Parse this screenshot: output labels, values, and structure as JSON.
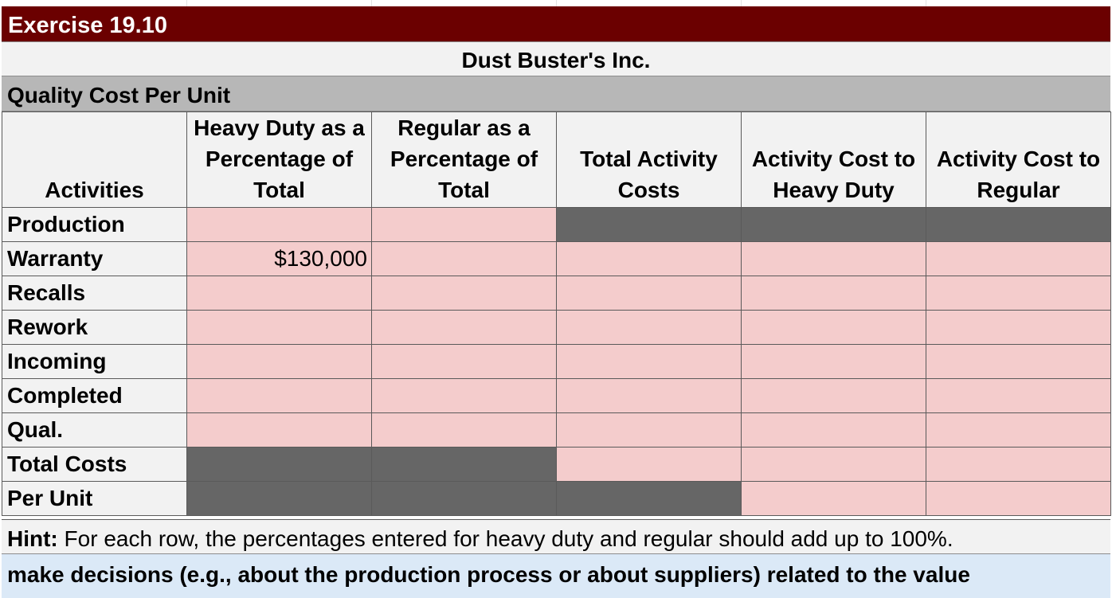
{
  "exercise_title": "Exercise 19.10",
  "company_name": "Dust Buster's Inc.",
  "section_title": "Quality Cost Per Unit",
  "headers": {
    "activities": "Activities",
    "heavy_pct": "Heavy Duty as a Percentage of Total",
    "regular_pct": "Regular as a Percentage of Total",
    "total_activity_costs": "Total Activity Costs",
    "cost_heavy": "Activity Cost to Heavy Duty",
    "cost_regular": "Activity Cost to Regular"
  },
  "rows": [
    {
      "label": "Production",
      "heavy_pct": "",
      "regular_pct": "",
      "total": "",
      "cost_heavy": "",
      "cost_regular": ""
    },
    {
      "label": "Warranty",
      "heavy_pct": "$130,000",
      "regular_pct": "",
      "total": "",
      "cost_heavy": "",
      "cost_regular": ""
    },
    {
      "label": "Recalls",
      "heavy_pct": "",
      "regular_pct": "",
      "total": "",
      "cost_heavy": "",
      "cost_regular": ""
    },
    {
      "label": "Rework",
      "heavy_pct": "",
      "regular_pct": "",
      "total": "",
      "cost_heavy": "",
      "cost_regular": ""
    },
    {
      "label": "Incoming",
      "heavy_pct": "",
      "regular_pct": "",
      "total": "",
      "cost_heavy": "",
      "cost_regular": ""
    },
    {
      "label": "Completed",
      "heavy_pct": "",
      "regular_pct": "",
      "total": "",
      "cost_heavy": "",
      "cost_regular": ""
    },
    {
      "label": "Qual.",
      "heavy_pct": "",
      "regular_pct": "",
      "total": "",
      "cost_heavy": "",
      "cost_regular": ""
    }
  ],
  "total_costs_label": "Total Costs",
  "per_unit_label": "Per Unit",
  "hint_label": "Hint:",
  "hint_text": " For each row, the percentages entered for heavy duty and regular should add up to 100%.",
  "bottom_text": "make decisions (e.g., about the production process or about suppliers) related to the value",
  "colors": {
    "title_bar": "#6b0000",
    "input_cell": "#f4cccc",
    "blocked_cell": "#666666",
    "header_bg": "#f2f2f2",
    "section_bg": "#b7b7b7",
    "bottom_bg": "#dbe9f7"
  }
}
